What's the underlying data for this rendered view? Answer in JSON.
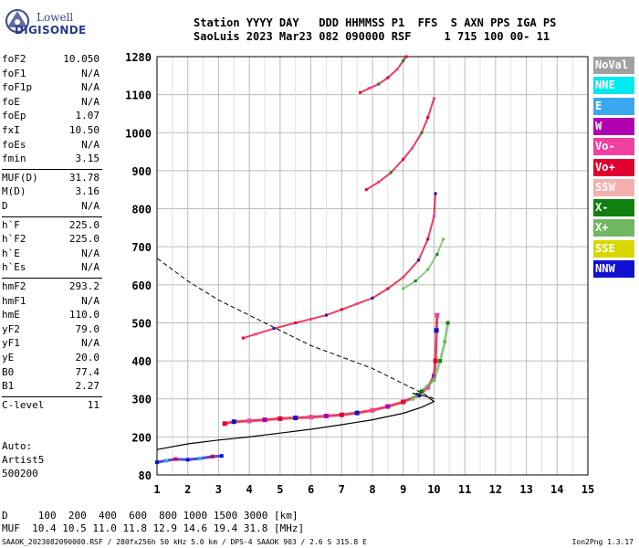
{
  "logo": {
    "line1": "Lowell",
    "line2": "DIGISONDE"
  },
  "header": {
    "line1": "Station YYYY DAY   DDD HHMMSS P1  FFS  S AXN PPS IGA PS",
    "line2": "SaoLuis 2023 Mar23 082 090000 RSF     1 715 100 00- 11"
  },
  "params": {
    "group1": [
      {
        "label": "foF2",
        "value": "10.050"
      },
      {
        "label": "foF1",
        "value": "N/A"
      },
      {
        "label": "foF1p",
        "value": "N/A"
      },
      {
        "label": "foE",
        "value": "N/A"
      },
      {
        "label": "foEp",
        "value": "1.07"
      },
      {
        "label": "fxI",
        "value": "10.50"
      },
      {
        "label": "foEs",
        "value": "N/A"
      },
      {
        "label": "fmin",
        "value": "3.15"
      }
    ],
    "group2": [
      {
        "label": "MUF(D)",
        "value": "31.78"
      },
      {
        "label": "M(D)",
        "value": "3.16"
      },
      {
        "label": "D",
        "value": "N/A"
      }
    ],
    "group3": [
      {
        "label": "h`F",
        "value": "225.0"
      },
      {
        "label": "h`F2",
        "value": "225.0"
      },
      {
        "label": "h`E",
        "value": "N/A"
      },
      {
        "label": "h`Es",
        "value": "N/A"
      }
    ],
    "group4": [
      {
        "label": "hmF2",
        "value": "293.2"
      },
      {
        "label": "hmF1",
        "value": "N/A"
      },
      {
        "label": "hmE",
        "value": "110.0"
      },
      {
        "label": "yF2",
        "value": "79.0"
      },
      {
        "label": "yF1",
        "value": "N/A"
      },
      {
        "label": "yE",
        "value": "20.0"
      },
      {
        "label": "B0",
        "value": "77.4"
      },
      {
        "label": "B1",
        "value": "2.27"
      }
    ],
    "group5": [
      {
        "label": "C-level",
        "value": "11"
      }
    ]
  },
  "auto": {
    "line1": "Auto:",
    "line2": "Artist5",
    "line3": "500200"
  },
  "legend": [
    {
      "label": "NoVal",
      "color": "#a0a0a0"
    },
    {
      "label": "NNE",
      "color": "#00e8f0"
    },
    {
      "label": "E",
      "color": "#3aa8f0"
    },
    {
      "label": "W",
      "color": "#b000b0"
    },
    {
      "label": "Vo-",
      "color": "#f040a0"
    },
    {
      "label": "Vo+",
      "color": "#e00030"
    },
    {
      "label": "SSW",
      "color": "#f4b0b0"
    },
    {
      "label": "X-",
      "color": "#108010"
    },
    {
      "label": "X+",
      "color": "#70b860"
    },
    {
      "label": "SSE",
      "color": "#d8d800"
    },
    {
      "label": "NNW",
      "color": "#1010d0"
    }
  ],
  "footer": {
    "line1": "D     100  200  400  600  800 1000 1500 3000 [km]",
    "line2": "MUF  10.4 10.5 11.0 11.8 12.9 14.6 19.4 31.8 [MHz]",
    "line3": "SAAOK_2023082090000.RSF / 280fx256h 50 kHz 5.0 km / DPS-4 SAAOK 903 / 2.6 S 315.8 E",
    "line3_right": "Ion2Png 1.3.17"
  },
  "chart_data": {
    "type": "scatter",
    "title": "",
    "xlabel": "",
    "ylabel": "",
    "xlim": [
      1,
      15
    ],
    "ylim": [
      80,
      1280
    ],
    "x_ticks": [
      "1",
      "2",
      "3",
      "4",
      "5",
      "6",
      "7",
      "8",
      "9",
      "10",
      "11",
      "12",
      "13",
      "14",
      "15"
    ],
    "y_ticks": [
      "80",
      "200",
      "300",
      "400",
      "500",
      "600",
      "700",
      "800",
      "900",
      "1000",
      "1100",
      "1280"
    ],
    "y_tick_values": [
      80,
      200,
      300,
      400,
      500,
      600,
      700,
      800,
      900,
      1000,
      1100,
      1280
    ],
    "grid": true,
    "series": [
      {
        "name": "O-trace 1st hop",
        "points": [
          [
            3.2,
            235
          ],
          [
            3.5,
            240
          ],
          [
            4.0,
            242
          ],
          [
            4.5,
            245
          ],
          [
            5.0,
            248
          ],
          [
            5.5,
            250
          ],
          [
            6.0,
            252
          ],
          [
            6.5,
            255
          ],
          [
            7.0,
            258
          ],
          [
            7.5,
            263
          ],
          [
            8.0,
            270
          ],
          [
            8.5,
            280
          ],
          [
            9.0,
            292
          ],
          [
            9.5,
            310
          ],
          [
            9.8,
            330
          ],
          [
            10.0,
            360
          ],
          [
            10.05,
            400
          ],
          [
            10.08,
            480
          ],
          [
            10.1,
            520
          ]
        ]
      },
      {
        "name": "O-trace 2nd hop",
        "points": [
          [
            3.8,
            460
          ],
          [
            4.2,
            470
          ],
          [
            4.8,
            485
          ],
          [
            5.5,
            500
          ],
          [
            6.0,
            510
          ],
          [
            6.5,
            520
          ],
          [
            7.0,
            535
          ],
          [
            7.5,
            550
          ],
          [
            8.0,
            565
          ],
          [
            8.5,
            590
          ],
          [
            9.0,
            620
          ],
          [
            9.5,
            665
          ],
          [
            9.8,
            720
          ],
          [
            10.0,
            780
          ],
          [
            10.05,
            840
          ]
        ]
      },
      {
        "name": "O-trace 3rd hop",
        "points": [
          [
            7.8,
            850
          ],
          [
            8.2,
            870
          ],
          [
            8.6,
            895
          ],
          [
            9.0,
            930
          ],
          [
            9.3,
            960
          ],
          [
            9.6,
            1000
          ],
          [
            9.8,
            1040
          ],
          [
            10.0,
            1090
          ]
        ]
      },
      {
        "name": "O-trace 4th hop",
        "points": [
          [
            7.6,
            1110
          ],
          [
            7.9,
            1130
          ],
          [
            8.2,
            1150
          ],
          [
            8.5,
            1180
          ],
          [
            8.8,
            1220
          ],
          [
            9.0,
            1260
          ],
          [
            9.1,
            1280
          ]
        ]
      },
      {
        "name": "X-trace 1st hop",
        "points": [
          [
            9.3,
            300
          ],
          [
            9.6,
            320
          ],
          [
            10.0,
            350
          ],
          [
            10.2,
            400
          ],
          [
            10.35,
            450
          ],
          [
            10.45,
            500
          ]
        ]
      },
      {
        "name": "X-trace 2nd hop",
        "points": [
          [
            9.0,
            590
          ],
          [
            9.4,
            610
          ],
          [
            9.8,
            640
          ],
          [
            10.1,
            680
          ],
          [
            10.3,
            720
          ]
        ]
      },
      {
        "name": "Low echoes",
        "points": [
          [
            1.0,
            120
          ],
          [
            1.3,
            125
          ],
          [
            1.6,
            130
          ],
          [
            2.0,
            128
          ],
          [
            2.4,
            132
          ],
          [
            2.8,
            138
          ],
          [
            3.1,
            140
          ]
        ]
      },
      {
        "name": "Electron density profile",
        "points": [
          [
            1.0,
            160
          ],
          [
            2.0,
            178
          ],
          [
            3.0,
            190
          ],
          [
            4.0,
            200
          ],
          [
            5.0,
            210
          ],
          [
            6.0,
            220
          ],
          [
            7.0,
            232
          ],
          [
            8.0,
            245
          ],
          [
            9.0,
            262
          ],
          [
            9.6,
            278
          ],
          [
            10.0,
            293
          ],
          [
            9.8,
            305
          ],
          [
            9.3,
            315
          ]
        ]
      },
      {
        "name": "Topside profile",
        "points": [
          [
            10.0,
            300
          ],
          [
            9.0,
            340
          ],
          [
            8.0,
            380
          ],
          [
            7.0,
            410
          ],
          [
            6.0,
            440
          ],
          [
            5.0,
            480
          ],
          [
            4.0,
            520
          ],
          [
            3.0,
            560
          ],
          [
            2.0,
            610
          ],
          [
            1.5,
            640
          ],
          [
            1.0,
            670
          ]
        ]
      }
    ]
  }
}
